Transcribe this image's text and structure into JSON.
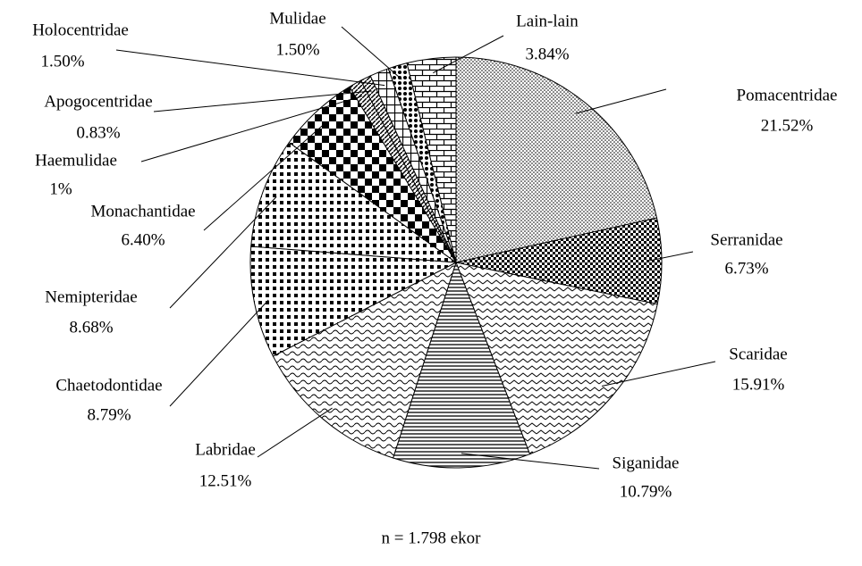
{
  "chart_data": {
    "type": "pie",
    "note_text": "n = 1.798 ekor",
    "categories": [
      "Pomacentridae",
      "Serranidae",
      "Scaridae",
      "Siganidae",
      "Labridae",
      "Chaetodontidae",
      "Nemipteridae",
      "Monachantidae",
      "Haemulidae",
      "Apogocentridae",
      "Holocentridae",
      "Mulidae",
      "Lain-lain"
    ],
    "values": [
      21.52,
      6.73,
      15.91,
      10.79,
      12.51,
      8.79,
      8.68,
      6.4,
      1,
      0.83,
      1.5,
      1.5,
      3.84
    ],
    "value_labels": [
      "21.52%",
      "6.73%",
      "15.91%",
      "10.79%",
      "12.51%",
      "8.79%",
      "8.68%",
      "6.40%",
      "1%",
      "0.83%",
      "1.50%",
      "1.50%",
      "3.84%"
    ],
    "fills": [
      "dots",
      "small-checks",
      "zigzag",
      "hlines",
      "waves",
      "square-dots",
      "square-dots",
      "big-checks",
      "diag",
      "diag",
      "grid",
      "diag-dots",
      "bricks"
    ]
  }
}
